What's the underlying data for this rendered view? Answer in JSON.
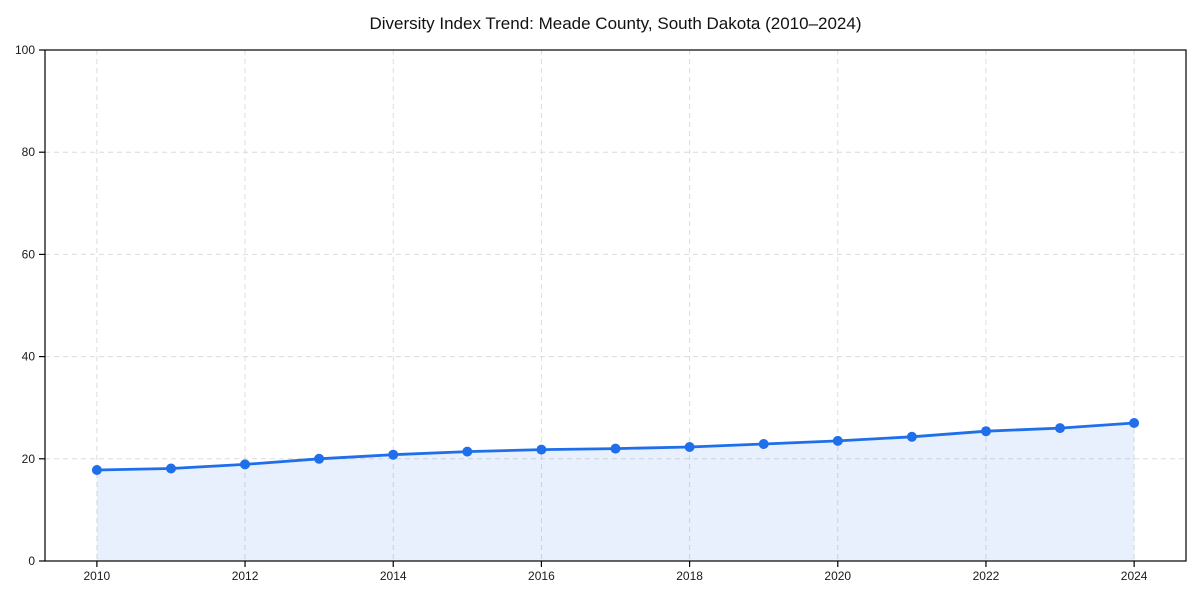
{
  "page": {
    "background": "#ffffff"
  },
  "chart_data": {
    "type": "line",
    "title": "Diversity Index Trend: Meade County, South Dakota (2010–2024)",
    "x": [
      2010,
      2011,
      2012,
      2013,
      2014,
      2015,
      2016,
      2017,
      2018,
      2019,
      2020,
      2021,
      2022,
      2023,
      2024
    ],
    "values": [
      17.8,
      18.1,
      18.9,
      20.0,
      20.8,
      21.4,
      21.8,
      22.0,
      22.3,
      22.9,
      23.5,
      24.3,
      25.4,
      26.0,
      27.0
    ],
    "xlabel": "",
    "ylabel": "",
    "xlim": [
      2009.3,
      2024.7
    ],
    "ylim": [
      0,
      100
    ],
    "xticks": [
      2010,
      2012,
      2014,
      2016,
      2018,
      2020,
      2022,
      2024
    ],
    "yticks": [
      0,
      20,
      40,
      60,
      80,
      100
    ],
    "grid": true,
    "grid_style": "dashed",
    "legend_position": "none",
    "marker": "circle",
    "area_fill": true,
    "colors": {
      "line": "#1f6feb",
      "marker": "#1f6feb",
      "fill": "#1f6feb",
      "fill_opacity": 0.1,
      "grid": "#dcdcdc",
      "spine": "#000000",
      "tick_label": "#1a1a1a",
      "title": "#111111"
    }
  }
}
